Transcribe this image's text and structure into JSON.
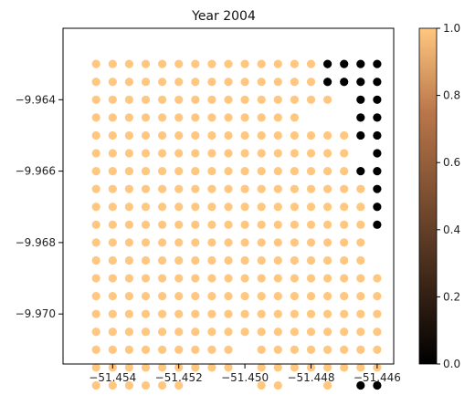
{
  "chart_data": {
    "type": "scatter",
    "title": "Year 2004",
    "xlabel": "",
    "ylabel": "",
    "xlim": [
      -51.4555,
      -51.4455
    ],
    "ylim": [
      -9.9714,
      -9.962
    ],
    "x_ticks": [
      -51.454,
      -51.452,
      -51.45,
      -51.448,
      -51.446
    ],
    "x_tick_labels": [
      "−51.454",
      "−51.452",
      "−51.450",
      "−51.448",
      "−51.446"
    ],
    "y_ticks": [
      -9.964,
      -9.966,
      -9.968,
      -9.97
    ],
    "y_tick_labels": [
      "−9.964",
      "−9.966",
      "−9.968",
      "−9.970"
    ],
    "colormap": "copper",
    "value_range": [
      0,
      1
    ],
    "colorbar_ticks": [
      0.0,
      0.2,
      0.4,
      0.6,
      0.8,
      1.0
    ],
    "colorbar_tick_labels": [
      "0.0",
      "0.2",
      "0.4",
      "0.6",
      "0.8",
      "1.0"
    ],
    "point_colors": {
      "1": "#FFC77F",
      "0": "#000000"
    },
    "grid": false,
    "legend": "none",
    "grid_x": [
      -51.4545,
      -51.454,
      -51.4535,
      -51.453,
      -51.4525,
      -51.452,
      -51.4515,
      -51.451,
      -51.4505,
      -51.45,
      -51.4495,
      -51.449,
      -51.4485,
      -51.448,
      -51.4475,
      -51.447,
      -51.4465,
      -51.446
    ],
    "grid_y": [
      -9.963,
      -9.9635,
      -9.964,
      -9.9645,
      -9.965,
      -9.9655,
      -9.966,
      -9.9665,
      -9.967,
      -9.9675,
      -9.968,
      -9.9685,
      -9.969,
      -9.9695,
      -9.97,
      -9.9705,
      -9.971
    ],
    "value_rows": [
      "11111111111111000",
      "11111111111111000",
      "111111111111111000",
      "11111111111100",
      "11111111111111100",
      "111111111111111110",
      "111111111111111000",
      "111111111111111110",
      "111111111111111110",
      "111111111111111110",
      "11111111111111111",
      "11111111111111111",
      "111111111111111111",
      "111111111111111111",
      "111111111111111111",
      "111111111111111111",
      "111111111111111111",
      "1111111111111111",
      "111111111 1 1 1 1 00"
    ],
    "points": [
      {
        "row": 0,
        "cols": [
          0,
          1,
          2,
          3,
          4,
          5,
          6,
          7,
          8,
          9,
          10,
          11,
          12,
          13,
          14,
          15,
          16,
          17
        ],
        "values": [
          1,
          1,
          1,
          1,
          1,
          1,
          1,
          1,
          1,
          1,
          1,
          1,
          1,
          1,
          0,
          0,
          0,
          0
        ]
      },
      {
        "row": 1,
        "cols": [
          0,
          1,
          2,
          3,
          4,
          5,
          6,
          7,
          8,
          9,
          10,
          11,
          12,
          13,
          14,
          15,
          16,
          17
        ],
        "values": [
          1,
          1,
          1,
          1,
          1,
          1,
          1,
          1,
          1,
          1,
          1,
          1,
          1,
          1,
          0,
          0,
          0,
          0
        ]
      },
      {
        "row": 2,
        "cols": [
          0,
          1,
          2,
          3,
          4,
          5,
          6,
          7,
          8,
          9,
          10,
          11,
          12,
          13,
          14,
          16,
          17
        ],
        "values": [
          1,
          1,
          1,
          1,
          1,
          1,
          1,
          1,
          1,
          1,
          1,
          1,
          1,
          1,
          1,
          0,
          0
        ]
      },
      {
        "row": 3,
        "cols": [
          0,
          1,
          2,
          3,
          4,
          5,
          6,
          7,
          8,
          9,
          10,
          11,
          12,
          16,
          17
        ],
        "values": [
          1,
          1,
          1,
          1,
          1,
          1,
          1,
          1,
          1,
          1,
          1,
          1,
          1,
          0,
          0
        ]
      },
      {
        "row": 4,
        "cols": [
          0,
          1,
          2,
          3,
          4,
          5,
          6,
          7,
          8,
          9,
          10,
          11,
          12,
          13,
          14,
          15,
          16,
          17
        ],
        "values": [
          1,
          1,
          1,
          1,
          1,
          1,
          1,
          1,
          1,
          1,
          1,
          1,
          1,
          1,
          1,
          1,
          0,
          0
        ]
      },
      {
        "row": 5,
        "cols": [
          0,
          1,
          2,
          3,
          4,
          5,
          6,
          7,
          8,
          9,
          10,
          11,
          12,
          13,
          14,
          15,
          17
        ],
        "values": [
          1,
          1,
          1,
          1,
          1,
          1,
          1,
          1,
          1,
          1,
          1,
          1,
          1,
          1,
          1,
          1,
          0
        ]
      },
      {
        "row": 6,
        "cols": [
          0,
          1,
          2,
          3,
          4,
          5,
          6,
          7,
          8,
          9,
          10,
          11,
          12,
          13,
          14,
          15,
          16,
          17
        ],
        "values": [
          1,
          1,
          1,
          1,
          1,
          1,
          1,
          1,
          1,
          1,
          1,
          1,
          1,
          1,
          1,
          1,
          0,
          0
        ]
      },
      {
        "row": 7,
        "cols": [
          0,
          1,
          2,
          3,
          4,
          5,
          6,
          7,
          8,
          9,
          10,
          11,
          12,
          13,
          14,
          15,
          16,
          17
        ],
        "values": [
          1,
          1,
          1,
          1,
          1,
          1,
          1,
          1,
          1,
          1,
          1,
          1,
          1,
          1,
          1,
          1,
          1,
          0
        ]
      },
      {
        "row": 8,
        "cols": [
          0,
          1,
          2,
          3,
          4,
          5,
          6,
          7,
          8,
          9,
          10,
          11,
          12,
          13,
          14,
          15,
          16,
          17
        ],
        "values": [
          1,
          1,
          1,
          1,
          1,
          1,
          1,
          1,
          1,
          1,
          1,
          1,
          1,
          1,
          1,
          1,
          1,
          0
        ]
      },
      {
        "row": 9,
        "cols": [
          0,
          1,
          2,
          3,
          4,
          5,
          6,
          7,
          8,
          9,
          10,
          11,
          12,
          13,
          14,
          15,
          16,
          17
        ],
        "values": [
          1,
          1,
          1,
          1,
          1,
          1,
          1,
          1,
          1,
          1,
          1,
          1,
          1,
          1,
          1,
          1,
          1,
          0
        ]
      },
      {
        "row": 10,
        "cols": [
          0,
          1,
          2,
          3,
          4,
          5,
          6,
          7,
          8,
          9,
          10,
          11,
          12,
          13,
          14,
          15,
          16
        ],
        "values": [
          1,
          1,
          1,
          1,
          1,
          1,
          1,
          1,
          1,
          1,
          1,
          1,
          1,
          1,
          1,
          1,
          1
        ]
      },
      {
        "row": 11,
        "cols": [
          0,
          1,
          2,
          3,
          4,
          5,
          6,
          7,
          8,
          9,
          10,
          11,
          12,
          13,
          14,
          15,
          16
        ],
        "values": [
          1,
          1,
          1,
          1,
          1,
          1,
          1,
          1,
          1,
          1,
          1,
          1,
          1,
          1,
          1,
          1,
          1
        ]
      },
      {
        "row": 12,
        "cols": [
          0,
          1,
          2,
          3,
          4,
          5,
          6,
          7,
          8,
          9,
          10,
          11,
          12,
          13,
          14,
          15,
          16,
          17
        ],
        "values": [
          1,
          1,
          1,
          1,
          1,
          1,
          1,
          1,
          1,
          1,
          1,
          1,
          1,
          1,
          1,
          1,
          1,
          1
        ]
      },
      {
        "row": 13,
        "cols": [
          0,
          1,
          2,
          3,
          4,
          5,
          6,
          7,
          8,
          9,
          10,
          11,
          12,
          13,
          14,
          15,
          16,
          17
        ],
        "values": [
          1,
          1,
          1,
          1,
          1,
          1,
          1,
          1,
          1,
          1,
          1,
          1,
          1,
          1,
          1,
          1,
          1,
          1
        ]
      },
      {
        "row": 14,
        "cols": [
          0,
          1,
          2,
          3,
          4,
          5,
          6,
          7,
          8,
          9,
          10,
          11,
          12,
          13,
          14,
          15,
          16,
          17
        ],
        "values": [
          1,
          1,
          1,
          1,
          1,
          1,
          1,
          1,
          1,
          1,
          1,
          1,
          1,
          1,
          1,
          1,
          1,
          1
        ]
      },
      {
        "row": 15,
        "cols": [
          0,
          1,
          2,
          3,
          4,
          5,
          6,
          7,
          8,
          9,
          10,
          11,
          12,
          13,
          14,
          15,
          16,
          17
        ],
        "values": [
          1,
          1,
          1,
          1,
          1,
          1,
          1,
          1,
          1,
          1,
          1,
          1,
          1,
          1,
          1,
          1,
          1,
          1
        ]
      },
      {
        "row": 16,
        "cols": [
          0,
          1,
          2,
          3,
          4,
          5,
          6,
          7,
          8,
          10,
          11,
          12,
          13,
          14,
          15,
          16,
          17
        ],
        "values": [
          1,
          1,
          1,
          1,
          1,
          1,
          1,
          1,
          1,
          1,
          1,
          1,
          1,
          1,
          1,
          1,
          1
        ]
      },
      {
        "row": 17,
        "cols": [
          0,
          1,
          2,
          3,
          4,
          5,
          6,
          7,
          8,
          10,
          11,
          12,
          13,
          14,
          15,
          16,
          17
        ],
        "values": [
          1,
          1,
          1,
          1,
          1,
          1,
          1,
          1,
          1,
          1,
          1,
          1,
          1,
          1,
          1,
          1,
          1
        ]
      },
      {
        "row": 18,
        "cols": [
          0,
          1,
          2,
          3,
          4,
          5,
          10,
          11,
          14,
          16,
          17
        ],
        "values": [
          1,
          1,
          1,
          1,
          1,
          1,
          1,
          1,
          1,
          0,
          0
        ]
      }
    ]
  }
}
